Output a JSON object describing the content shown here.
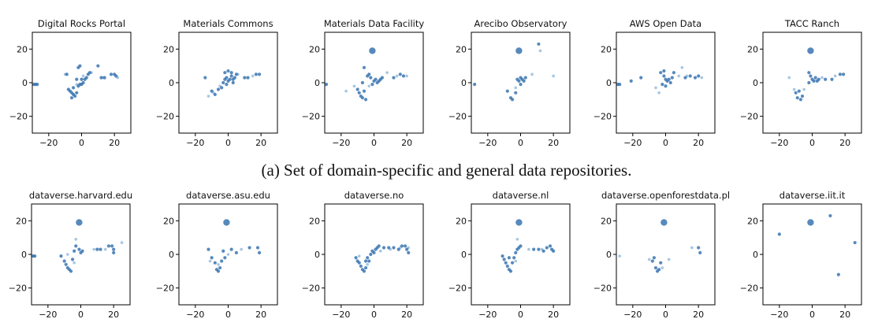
{
  "caption": "(a) Set of domain-specific and general data repositories.",
  "colors": {
    "point": "#3a74b0",
    "point_light": "#9cc0df",
    "frame": "#000000"
  },
  "chart_data": [
    {
      "type": "scatter",
      "title": "Digital Rocks Portal",
      "xlim": [
        -30,
        30
      ],
      "ylim": [
        -30,
        30
      ],
      "xticks": [
        -20,
        0,
        20
      ],
      "yticks": [
        -20,
        0,
        20
      ],
      "xtick_labels": [
        "−20",
        "0",
        "20"
      ],
      "ytick_labels": [
        "−20",
        "0",
        "20"
      ],
      "points": [
        [
          -29,
          -1
        ],
        [
          -28,
          -1
        ],
        [
          -27,
          -1
        ],
        [
          -6,
          -6
        ],
        [
          -7,
          -5
        ],
        [
          -5,
          -7
        ],
        [
          -8,
          -4
        ],
        [
          -4,
          -8
        ],
        [
          -6,
          -9
        ],
        [
          -3,
          -6
        ],
        [
          -5,
          -3
        ],
        [
          -2,
          -2
        ],
        [
          -1,
          -1
        ],
        [
          0,
          -1
        ],
        [
          1,
          0
        ],
        [
          -3,
          2
        ],
        [
          0,
          2
        ],
        [
          2,
          2
        ],
        [
          3,
          3
        ],
        [
          -2,
          9
        ],
        [
          -1,
          10
        ],
        [
          4,
          5
        ],
        [
          5,
          6
        ],
        [
          10,
          10
        ],
        [
          12,
          3
        ],
        [
          14,
          3
        ],
        [
          18,
          5
        ],
        [
          20,
          5
        ],
        [
          21,
          4
        ],
        [
          -9,
          5
        ]
      ],
      "light_points": [
        [
          -10,
          5
        ],
        [
          -5,
          -7
        ],
        [
          -3,
          -1
        ],
        [
          1,
          4
        ],
        [
          6,
          6
        ],
        [
          13,
          3
        ],
        [
          22,
          3
        ]
      ]
    },
    {
      "type": "scatter",
      "title": "Materials Commons",
      "xlim": [
        -30,
        30
      ],
      "ylim": [
        -30,
        30
      ],
      "xticks": [
        -20,
        0,
        20
      ],
      "yticks": [
        -20,
        0,
        20
      ],
      "xtick_labels": [
        "−20",
        "0",
        "20"
      ],
      "ytick_labels": [
        "−20",
        "0",
        "20"
      ],
      "points": [
        [
          -14,
          3
        ],
        [
          -10,
          -5
        ],
        [
          -8,
          -7
        ],
        [
          -6,
          -4
        ],
        [
          -4,
          -3
        ],
        [
          -3,
          0
        ],
        [
          -2,
          2
        ],
        [
          -1,
          3
        ],
        [
          0,
          1
        ],
        [
          1,
          2
        ],
        [
          2,
          4
        ],
        [
          3,
          2
        ],
        [
          4,
          3
        ],
        [
          5,
          5
        ],
        [
          -2,
          6
        ],
        [
          0,
          7
        ],
        [
          2,
          6
        ],
        [
          10,
          3
        ],
        [
          12,
          3
        ],
        [
          17,
          5
        ],
        [
          19,
          5
        ],
        [
          3,
          0
        ],
        [
          -1,
          -1
        ]
      ],
      "light_points": [
        [
          -12,
          -8
        ],
        [
          -9,
          -6
        ],
        [
          -5,
          -2
        ],
        [
          6,
          5
        ],
        [
          15,
          4
        ]
      ]
    },
    {
      "type": "scatter",
      "title": "Materials Data Facility",
      "xlim": [
        -30,
        30
      ],
      "ylim": [
        -30,
        30
      ],
      "xticks": [
        -20,
        0,
        20
      ],
      "yticks": [
        -20,
        0,
        20
      ],
      "xtick_labels": [
        "−20",
        "0",
        "20"
      ],
      "ytick_labels": [
        "−20",
        "0",
        "20"
      ],
      "points": [
        [
          -29,
          -1
        ],
        [
          -1,
          19
        ],
        [
          -10,
          -4
        ],
        [
          -9,
          -6
        ],
        [
          -8,
          -8
        ],
        [
          -7,
          -9
        ],
        [
          -6,
          -5
        ],
        [
          -5,
          -10
        ],
        [
          -7,
          0
        ],
        [
          -4,
          4
        ],
        [
          -3,
          5
        ],
        [
          -2,
          3
        ],
        [
          0,
          1
        ],
        [
          1,
          2
        ],
        [
          2,
          0
        ],
        [
          3,
          1
        ],
        [
          4,
          2
        ],
        [
          5,
          3
        ],
        [
          -1,
          -1
        ],
        [
          12,
          3
        ],
        [
          16,
          5
        ],
        [
          18,
          4
        ],
        [
          -6,
          9
        ]
      ],
      "light_points": [
        [
          -17,
          -5
        ],
        [
          -12,
          -2
        ],
        [
          -3,
          -2
        ],
        [
          8,
          6
        ],
        [
          14,
          4
        ],
        [
          20,
          4
        ]
      ]
    },
    {
      "type": "scatter",
      "title": "Arecibo Observatory",
      "xlim": [
        -30,
        30
      ],
      "ylim": [
        -30,
        30
      ],
      "xticks": [
        -20,
        0,
        20
      ],
      "yticks": [
        -20,
        0,
        20
      ],
      "xtick_labels": [
        "−20",
        "0",
        "20"
      ],
      "ytick_labels": [
        "−20",
        "0",
        "20"
      ],
      "points": [
        [
          -28,
          -1
        ],
        [
          -1,
          19
        ],
        [
          -8,
          -5
        ],
        [
          -6,
          -9
        ],
        [
          -5,
          -10
        ],
        [
          -3,
          -6
        ],
        [
          -1,
          1
        ],
        [
          0,
          3
        ],
        [
          1,
          2
        ],
        [
          2,
          1
        ],
        [
          3,
          3
        ],
        [
          0,
          -1
        ],
        [
          -2,
          2
        ],
        [
          11,
          23
        ]
      ],
      "light_points": [
        [
          -3,
          -3
        ],
        [
          7,
          5
        ],
        [
          12,
          19
        ],
        [
          20,
          4
        ]
      ]
    },
    {
      "type": "scatter",
      "title": "AWS Open Data",
      "xlim": [
        -30,
        30
      ],
      "ylim": [
        -30,
        30
      ],
      "xticks": [
        -20,
        0,
        20
      ],
      "yticks": [
        -20,
        0,
        20
      ],
      "xtick_labels": [
        "−20",
        "0",
        "20"
      ],
      "ytick_labels": [
        "−20",
        "0",
        "20"
      ],
      "points": [
        [
          -29,
          -1
        ],
        [
          -28,
          -1
        ],
        [
          -21,
          1
        ],
        [
          -15,
          3
        ],
        [
          -3,
          6
        ],
        [
          -1,
          4
        ],
        [
          0,
          2
        ],
        [
          1,
          1
        ],
        [
          2,
          2
        ],
        [
          3,
          0
        ],
        [
          4,
          3
        ],
        [
          -2,
          -1
        ],
        [
          0,
          -2
        ],
        [
          5,
          6
        ],
        [
          12,
          3
        ],
        [
          15,
          4
        ],
        [
          18,
          3
        ],
        [
          20,
          4
        ],
        [
          -1,
          7
        ]
      ],
      "light_points": [
        [
          -6,
          -3
        ],
        [
          -4,
          -6
        ],
        [
          8,
          4
        ],
        [
          10,
          9
        ],
        [
          13,
          4
        ],
        [
          22,
          3
        ]
      ]
    },
    {
      "type": "scatter",
      "title": "TACC Ranch",
      "xlim": [
        -30,
        30
      ],
      "ylim": [
        -30,
        30
      ],
      "xticks": [
        -20,
        0,
        20
      ],
      "yticks": [
        -20,
        0,
        20
      ],
      "xtick_labels": [
        "−20",
        "0",
        "20"
      ],
      "ytick_labels": [
        "−20",
        "0",
        "20"
      ],
      "points": [
        [
          -1,
          19
        ],
        [
          -10,
          -6
        ],
        [
          -9,
          -9
        ],
        [
          -8,
          -5
        ],
        [
          -7,
          -10
        ],
        [
          -6,
          -8
        ],
        [
          -2,
          6
        ],
        [
          -1,
          4
        ],
        [
          0,
          2
        ],
        [
          1,
          1
        ],
        [
          2,
          3
        ],
        [
          3,
          1
        ],
        [
          4,
          2
        ],
        [
          8,
          2
        ],
        [
          12,
          2
        ],
        [
          17,
          5
        ],
        [
          19,
          5
        ],
        [
          -2,
          0
        ]
      ],
      "light_points": [
        [
          -14,
          3
        ],
        [
          -11,
          -4
        ],
        [
          -5,
          -4
        ],
        [
          6,
          3
        ],
        [
          14,
          4
        ]
      ]
    },
    {
      "type": "scatter",
      "title": "dataverse.harvard.edu",
      "xlim": [
        -30,
        30
      ],
      "ylim": [
        -30,
        30
      ],
      "xticks": [
        -20,
        0,
        20
      ],
      "yticks": [
        -20,
        0,
        20
      ],
      "xtick_labels": [
        "−20",
        "0",
        "20"
      ],
      "ytick_labels": [
        "−20",
        "0",
        "20"
      ],
      "points": [
        [
          -29,
          -1
        ],
        [
          -28,
          -1
        ],
        [
          -1,
          19
        ],
        [
          -12,
          -1
        ],
        [
          -10,
          -4
        ],
        [
          -9,
          -6
        ],
        [
          -8,
          -8
        ],
        [
          -7,
          -9
        ],
        [
          -6,
          -10
        ],
        [
          -5,
          -3
        ],
        [
          -4,
          2
        ],
        [
          -3,
          5
        ],
        [
          -1,
          3
        ],
        [
          0,
          1
        ],
        [
          1,
          2
        ],
        [
          10,
          3
        ],
        [
          12,
          3
        ],
        [
          17,
          5
        ],
        [
          19,
          5
        ],
        [
          20,
          3
        ],
        [
          20,
          1
        ]
      ],
      "light_points": [
        [
          -8,
          0
        ],
        [
          -4,
          -5
        ],
        [
          -3,
          9
        ],
        [
          8,
          3
        ],
        [
          15,
          3
        ],
        [
          25,
          7
        ]
      ]
    },
    {
      "type": "scatter",
      "title": "dataverse.asu.edu",
      "xlim": [
        -30,
        30
      ],
      "ylim": [
        -30,
        30
      ],
      "xticks": [
        -20,
        0,
        20
      ],
      "yticks": [
        -20,
        0,
        20
      ],
      "xtick_labels": [
        "−20",
        "0",
        "20"
      ],
      "ytick_labels": [
        "−20",
        "0",
        "20"
      ],
      "points": [
        [
          -1,
          19
        ],
        [
          -12,
          3
        ],
        [
          -10,
          -2
        ],
        [
          -8,
          -5
        ],
        [
          -7,
          -9
        ],
        [
          -6,
          -10
        ],
        [
          -5,
          -8
        ],
        [
          -4,
          -4
        ],
        [
          -3,
          2
        ],
        [
          2,
          3
        ],
        [
          5,
          1
        ],
        [
          13,
          4
        ],
        [
          18,
          4
        ],
        [
          19,
          1
        ],
        [
          -2,
          -2
        ]
      ],
      "light_points": [
        [
          -11,
          -4
        ],
        [
          -6,
          -6
        ],
        [
          0,
          0
        ],
        [
          8,
          3
        ]
      ]
    },
    {
      "type": "scatter",
      "title": "dataverse.no",
      "xlim": [
        -30,
        30
      ],
      "ylim": [
        -30,
        30
      ],
      "xticks": [
        -20,
        0,
        20
      ],
      "yticks": [
        -20,
        0,
        20
      ],
      "xtick_labels": [
        "−20",
        "0",
        "20"
      ],
      "ytick_labels": [
        "−20",
        "0",
        "20"
      ],
      "points": [
        [
          -11,
          -2
        ],
        [
          -10,
          -4
        ],
        [
          -9,
          -5
        ],
        [
          -8,
          -7
        ],
        [
          -7,
          -9
        ],
        [
          -6,
          -10
        ],
        [
          -5,
          -8
        ],
        [
          -5,
          -4
        ],
        [
          -4,
          -2
        ],
        [
          -3,
          -4
        ],
        [
          -2,
          0
        ],
        [
          -1,
          2
        ],
        [
          0,
          1
        ],
        [
          1,
          3
        ],
        [
          2,
          4
        ],
        [
          3,
          5
        ],
        [
          6,
          4
        ],
        [
          9,
          4
        ],
        [
          12,
          4
        ],
        [
          15,
          3
        ],
        [
          17,
          5
        ],
        [
          19,
          5
        ],
        [
          20,
          3
        ],
        [
          21,
          1
        ]
      ],
      "light_points": [
        [
          -9,
          -1
        ],
        [
          -4,
          -6
        ],
        [
          4,
          2
        ],
        [
          10,
          3
        ],
        [
          16,
          4
        ],
        [
          21,
          4
        ]
      ]
    },
    {
      "type": "scatter",
      "title": "dataverse.nl",
      "xlim": [
        -30,
        30
      ],
      "ylim": [
        -30,
        30
      ],
      "xticks": [
        -20,
        0,
        20
      ],
      "yticks": [
        -20,
        0,
        20
      ],
      "xtick_labels": [
        "−20",
        "0",
        "20"
      ],
      "ytick_labels": [
        "−20",
        "0",
        "20"
      ],
      "points": [
        [
          -1,
          19
        ],
        [
          -11,
          -1
        ],
        [
          -10,
          -3
        ],
        [
          -9,
          -5
        ],
        [
          -8,
          -7
        ],
        [
          -7,
          -9
        ],
        [
          -6,
          -10
        ],
        [
          -5,
          -5
        ],
        [
          -4,
          -2
        ],
        [
          -3,
          1
        ],
        [
          -2,
          3
        ],
        [
          -1,
          4
        ],
        [
          0,
          5
        ],
        [
          8,
          3
        ],
        [
          11,
          3
        ],
        [
          14,
          2
        ],
        [
          16,
          4
        ],
        [
          18,
          5
        ],
        [
          19,
          3
        ],
        [
          20,
          2
        ],
        [
          -7,
          -2
        ]
      ],
      "light_points": [
        [
          -3,
          -4
        ],
        [
          -2,
          9
        ],
        [
          5,
          3
        ],
        [
          13,
          3
        ]
      ]
    },
    {
      "type": "scatter",
      "title": "dataverse.openforestdata.pl",
      "xlim": [
        -30,
        30
      ],
      "ylim": [
        -30,
        30
      ],
      "xticks": [
        -20,
        0,
        20
      ],
      "yticks": [
        -20,
        0,
        20
      ],
      "xtick_labels": [
        "−20",
        "0",
        "20"
      ],
      "ytick_labels": [
        "−20",
        "0",
        "20"
      ],
      "points": [
        [
          -1,
          19
        ],
        [
          -8,
          -4
        ],
        [
          -6,
          -8
        ],
        [
          -5,
          -10
        ],
        [
          -4,
          -9
        ],
        [
          -3,
          -5
        ],
        [
          -7,
          -2
        ],
        [
          20,
          4
        ],
        [
          21,
          1
        ]
      ],
      "light_points": [
        [
          -28,
          -1
        ],
        [
          -10,
          -3
        ],
        [
          -2,
          -8
        ],
        [
          16,
          4
        ],
        [
          2,
          -3
        ]
      ]
    },
    {
      "type": "scatter",
      "title": "dataverse.iit.it",
      "xlim": [
        -30,
        30
      ],
      "ylim": [
        -30,
        30
      ],
      "xticks": [
        -20,
        0,
        20
      ],
      "yticks": [
        -20,
        0,
        20
      ],
      "xtick_labels": [
        "−20",
        "0",
        "20"
      ],
      "ytick_labels": [
        "−20",
        "0",
        "20"
      ],
      "points": [
        [
          -1,
          19
        ],
        [
          -20,
          12
        ],
        [
          11,
          23
        ],
        [
          26,
          7
        ],
        [
          16,
          -12
        ]
      ],
      "light_points": []
    }
  ]
}
